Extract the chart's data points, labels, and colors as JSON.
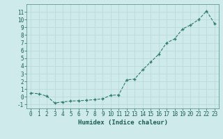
{
  "x": [
    0,
    1,
    2,
    3,
    4,
    5,
    6,
    7,
    8,
    9,
    10,
    11,
    12,
    13,
    14,
    15,
    16,
    17,
    18,
    19,
    20,
    21,
    22,
    23
  ],
  "y": [
    0.5,
    0.4,
    0.1,
    -0.8,
    -0.65,
    -0.55,
    -0.5,
    -0.45,
    -0.35,
    -0.25,
    0.2,
    0.25,
    2.2,
    2.3,
    3.5,
    4.5,
    5.5,
    7.0,
    7.5,
    8.8,
    9.3,
    10.0,
    11.1,
    9.5
  ],
  "ylim": [
    -1.5,
    12.0
  ],
  "xlim": [
    -0.5,
    23.5
  ],
  "yticks": [
    -1,
    0,
    1,
    2,
    3,
    4,
    5,
    6,
    7,
    8,
    9,
    10,
    11
  ],
  "xticks": [
    0,
    1,
    2,
    3,
    4,
    5,
    6,
    7,
    8,
    9,
    10,
    11,
    12,
    13,
    14,
    15,
    16,
    17,
    18,
    19,
    20,
    21,
    22,
    23
  ],
  "xlabel": "Humidex (Indice chaleur)",
  "line_color": "#2d7a6e",
  "marker": "+",
  "bg_color": "#ceeaea",
  "grid_color": "#b8d8d4",
  "label_color": "#1a5c52",
  "tick_color": "#1a5c52",
  "spine_color": "#4a8a80",
  "xlabel_fontsize": 6.5,
  "tick_fontsize": 5.5
}
